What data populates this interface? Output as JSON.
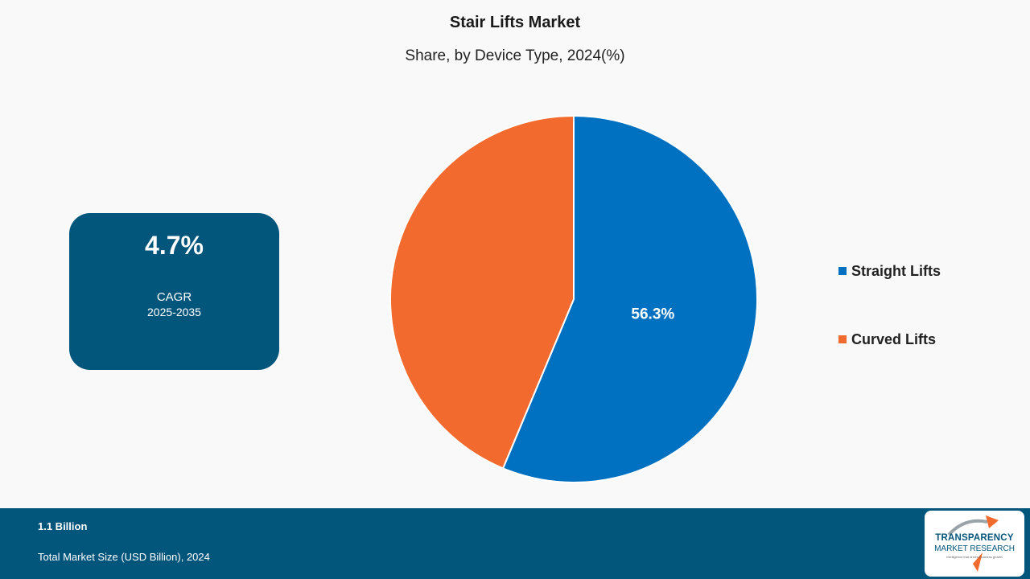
{
  "title": "Stair Lifts Market",
  "subtitle": "Share, by Device Type, 2024(%)",
  "cagr": {
    "value": "4.7%",
    "label": "CAGR",
    "range": "2025-2035"
  },
  "chart_data": {
    "type": "pie",
    "start_angle_deg": 0,
    "direction": "clockwise",
    "slices": [
      {
        "name": "Straight Lifts",
        "value": 56.3,
        "label": "56.3%",
        "color": "#0070c0"
      },
      {
        "name": "Curved Lifts",
        "value": 43.7,
        "label": "",
        "color": "#f36a2e"
      }
    ],
    "legend_position": "right"
  },
  "legend": [
    {
      "label": "Straight Lifts",
      "color": "#0070c0"
    },
    {
      "label": "Curved Lifts",
      "color": "#f36a2e"
    }
  ],
  "footer": {
    "value": "1.1 Billion",
    "label": "Total Market Size (USD Billion), 2024"
  },
  "logo": {
    "name": "TRANSPARENCY",
    "name2": "MARKET RESEARCH",
    "tagline": "Intelligence that drives business growth",
    "colors": {
      "primary": "#02557b",
      "accent": "#f36a2e"
    }
  }
}
